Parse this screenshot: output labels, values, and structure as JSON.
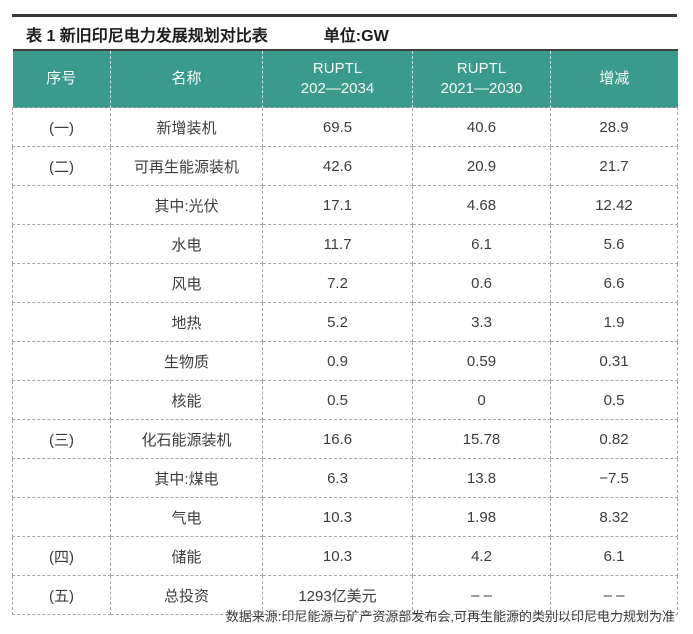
{
  "page": {
    "title": "表 1 新旧印尼电力发展规划对比表",
    "unit_label": "单位:GW",
    "source_note": "数据来源:印尼能源与矿产资源部发布会,可再生能源的类别以印尼电力规划为准"
  },
  "colors": {
    "header_bg": "#3a9a8c",
    "header_text": "#ffffff",
    "body_text": "#3d3d3d",
    "dashed_border": "#a8a8a8",
    "top_rule": "#383838"
  },
  "table": {
    "columns": [
      {
        "label": "序号",
        "sub": ""
      },
      {
        "label": "名称",
        "sub": ""
      },
      {
        "label": "RUPTL",
        "sub": "202—2034"
      },
      {
        "label": "RUPTL",
        "sub": "2021—2030"
      },
      {
        "label": "增减",
        "sub": ""
      }
    ],
    "rows": [
      [
        "(一)",
        "新增装机",
        "69.5",
        "40.6",
        "28.9"
      ],
      [
        "(二)",
        "可再生能源装机",
        "42.6",
        "20.9",
        "21.7"
      ],
      [
        "",
        "其中:光伏",
        "17.1",
        "4.68",
        "12.42"
      ],
      [
        "",
        "水电",
        "11.7",
        "6.1",
        "5.6"
      ],
      [
        "",
        "风电",
        "7.2",
        "0.6",
        "6.6"
      ],
      [
        "",
        "地热",
        "5.2",
        "3.3",
        "1.9"
      ],
      [
        "",
        "生物质",
        "0.9",
        "0.59",
        "0.31"
      ],
      [
        "",
        "核能",
        "0.5",
        "0",
        "0.5"
      ],
      [
        "(三)",
        "化石能源装机",
        "16.6",
        "15.78",
        "0.82"
      ],
      [
        "",
        "其中:煤电",
        "6.3",
        "13.8",
        "−7.5"
      ],
      [
        "",
        "气电",
        "10.3",
        "1.98",
        "8.32"
      ],
      [
        "(四)",
        "储能",
        "10.3",
        "4.2",
        "6.1"
      ],
      [
        "(五)",
        "总投资",
        "1293亿美元",
        "– –",
        "– –"
      ]
    ]
  }
}
